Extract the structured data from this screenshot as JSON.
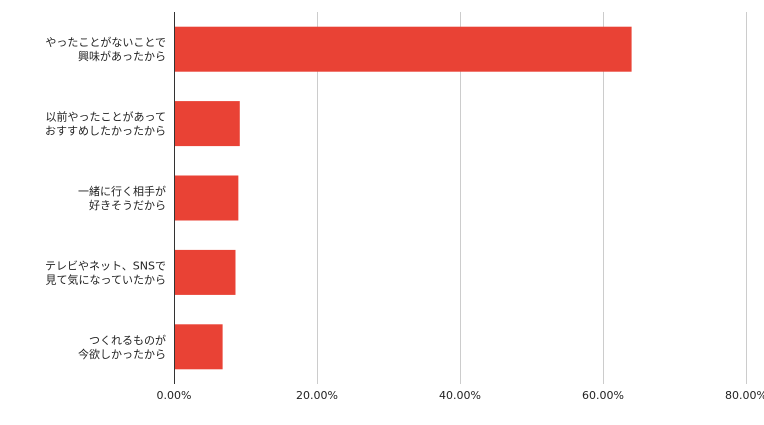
{
  "chart_data": {
    "type": "bar",
    "orientation": "horizontal",
    "categories": [
      [
        "やったことがないことで",
        "興味があったから"
      ],
      [
        "以前やったことがあって",
        "おすすめしたかったから"
      ],
      [
        "一緒に行く相手が",
        "好きそうだから"
      ],
      [
        "テレビやネット、SNSで",
        "見て気になっていたから"
      ],
      [
        "つくれるものが",
        "今欲しかったから"
      ]
    ],
    "values": [
      64.0,
      9.2,
      9.0,
      8.6,
      6.8
    ],
    "xlim": [
      0,
      80
    ],
    "xticks": [
      0,
      20,
      40,
      60,
      80
    ],
    "xtick_labels": [
      "0.00%",
      "20.00%",
      "40.00%",
      "60.00%",
      "80.00%"
    ],
    "grid": true,
    "legend": "none",
    "bar_color": "#E94235",
    "title": "",
    "xlabel": "",
    "ylabel": ""
  }
}
